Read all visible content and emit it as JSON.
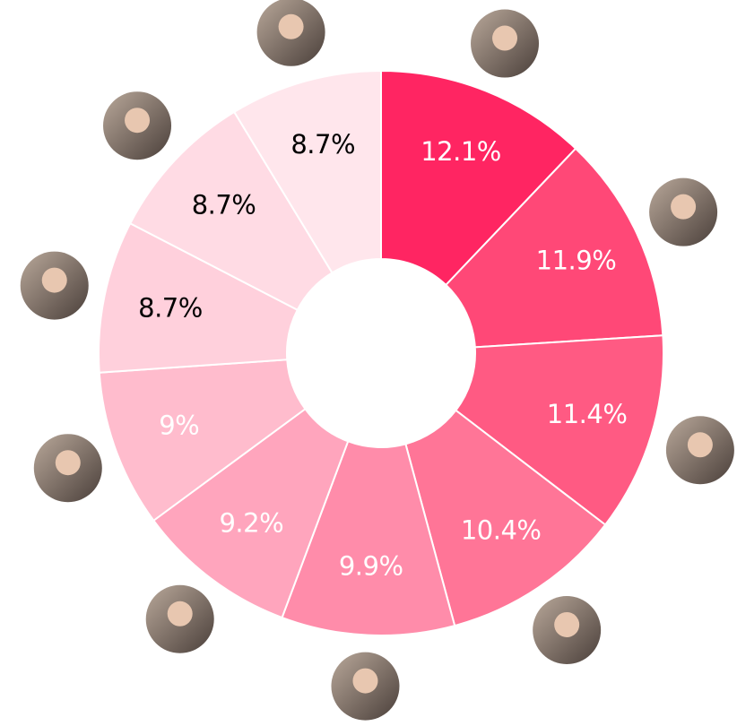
{
  "chart_data": {
    "type": "pie",
    "donut": true,
    "values": [
      12.1,
      11.9,
      11.4,
      10.4,
      9.9,
      9.2,
      9,
      8.7,
      8.7,
      8.7
    ],
    "value_labels": [
      "12.1%",
      "11.9%",
      "11.4%",
      "10.4%",
      "9.9%",
      "9.2%",
      "9%",
      "8.7%",
      "8.7%",
      "8.7%"
    ],
    "colors": [
      "#ff2562",
      "#ff4877",
      "#ff5a83",
      "#ff7597",
      "#ff8caa",
      "#ffa5bd",
      "#ffbccd",
      "#ffd0dc",
      "#ffdbe4",
      "#ffe6ec"
    ],
    "label_colors": [
      "#ffffff",
      "#ffffff",
      "#ffffff",
      "#ffffff",
      "#ffffff",
      "#ffffff",
      "#ffffff",
      "#000000",
      "#000000",
      "#000000"
    ]
  }
}
